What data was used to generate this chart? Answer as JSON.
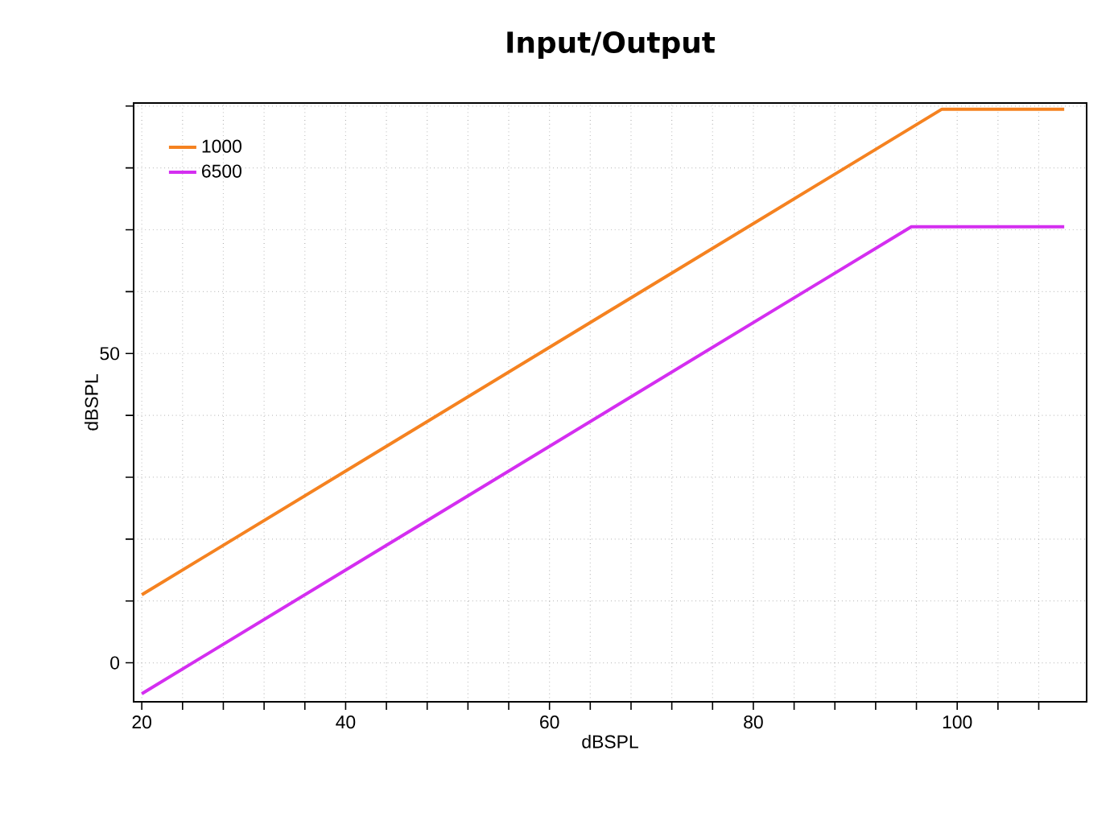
{
  "chart_data": {
    "type": "line",
    "title": "Input/Output",
    "xlabel": "dBSPL",
    "ylabel": "dBSPL",
    "xlim": [
      19.2,
      112.7
    ],
    "ylim": [
      -6.3,
      90.5
    ],
    "xticks": [
      20,
      {
        "value": 24,
        "label": null
      },
      {
        "value": 28,
        "label": null
      },
      {
        "value": 32,
        "label": null
      },
      {
        "value": 36,
        "label": null
      },
      40,
      {
        "value": 44,
        "label": null
      },
      {
        "value": 48,
        "label": null
      },
      {
        "value": 52,
        "label": null
      },
      {
        "value": 56,
        "label": null
      },
      60,
      {
        "value": 64,
        "label": null
      },
      {
        "value": 68,
        "label": null
      },
      {
        "value": 72,
        "label": null
      },
      {
        "value": 76,
        "label": null
      },
      80,
      {
        "value": 84,
        "label": null
      },
      {
        "value": 88,
        "label": null
      },
      {
        "value": 92,
        "label": null
      },
      {
        "value": 96,
        "label": null
      },
      100,
      {
        "value": 104,
        "label": null
      },
      {
        "value": 108,
        "label": null
      }
    ],
    "yticks": [
      0,
      {
        "value": 10,
        "label": null
      },
      {
        "value": 20,
        "label": null
      },
      {
        "value": 30,
        "label": null
      },
      {
        "value": 40,
        "label": null
      },
      50,
      {
        "value": 60,
        "label": null
      },
      {
        "value": 70,
        "label": null
      },
      {
        "value": 80,
        "label": null
      },
      {
        "value": 90,
        "label": null
      }
    ],
    "grid": true,
    "legend": "top left",
    "marker": "none",
    "line_style": "solid",
    "series": [
      {
        "name": "1000",
        "color": "#f58220",
        "x": [
          20,
          98.5,
          110.5
        ],
        "values": [
          11,
          89.5,
          89.5
        ]
      },
      {
        "name": "6500",
        "color": "#d42ef0",
        "x": [
          20,
          95.5,
          110.5
        ],
        "values": [
          -5,
          70.5,
          70.5
        ]
      }
    ]
  }
}
